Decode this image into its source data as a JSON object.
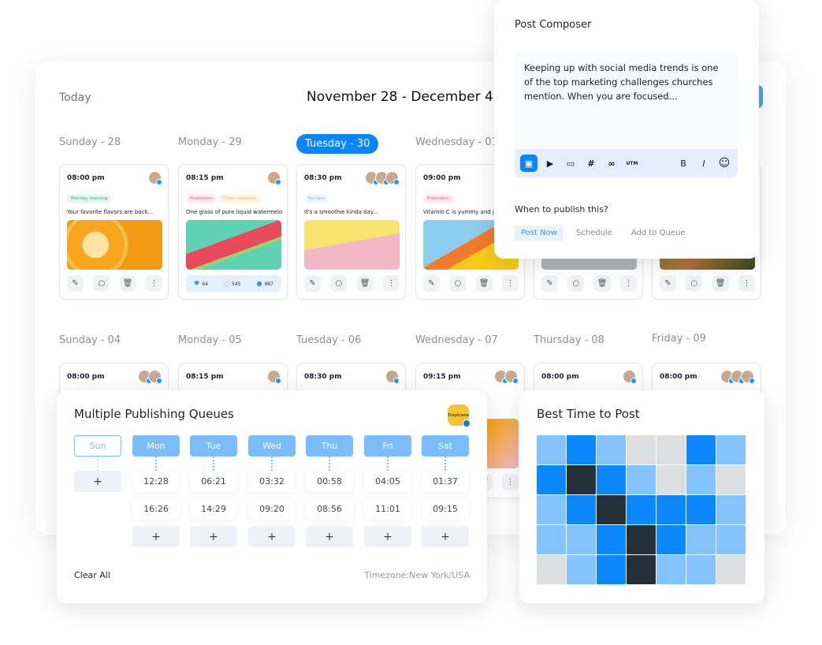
{
  "calendar": {
    "today_label": "Today",
    "date_range": "November 28 - December 4,2",
    "week1_days": [
      {
        "label": "Sunday - 28"
      },
      {
        "label": "Monday - 29"
      },
      {
        "label": "Tuesday - 30",
        "active": true
      },
      {
        "label": "Wednesday - 01"
      }
    ],
    "week2_days": [
      {
        "label": "Sunday - 04"
      },
      {
        "label": "Monday - 05"
      },
      {
        "label": "Tuesday - 06"
      },
      {
        "label": "Wednesday - 07"
      },
      {
        "label": "Thursday - 08"
      },
      {
        "label": "Friday - 09"
      }
    ],
    "week1_posts": [
      {
        "time": "08:00 pm",
        "tags": [
          {
            "text": "Monday morning",
            "bg": "#e6f7ef",
            "fg": "#2fb37a"
          }
        ],
        "text": "Your favorite flavors are back...",
        "image": "oranges",
        "avatars": 1
      },
      {
        "time": "08:15 pm",
        "tags": [
          {
            "text": "Promotion",
            "bg": "#fdecef",
            "fg": "#ef5b7c"
          },
          {
            "text": "Citrus madness",
            "bg": "#fff4e6",
            "fg": "#f0b45a"
          }
        ],
        "text": "One glass of pure liquid watermelon...",
        "image": "watermelon",
        "avatars": 1,
        "stats": {
          "likes": "64",
          "shares": "545",
          "comments": "987"
        }
      },
      {
        "time": "08:30 pm",
        "tags": [
          {
            "text": "Recipes",
            "bg": "#eef5fd",
            "fg": "#8db8ea"
          }
        ],
        "text": "It's a smoothie kinda day...",
        "image": "mango",
        "avatars": 3
      },
      {
        "time": "09:00 pm",
        "tags": [
          {
            "text": "Promotion",
            "bg": "#fdecef",
            "fg": "#ef5b7c"
          }
        ],
        "text": "Vitamin C is yummy and juicy",
        "image": "grapefruit",
        "avatars": 0
      },
      {
        "time": "",
        "tags": [],
        "text": "",
        "image": "pineapple",
        "avatars": 0
      },
      {
        "time": "",
        "tags": [],
        "text": "",
        "image": "greens",
        "avatars": 0
      }
    ],
    "week2_posts": [
      {
        "time": "08:00 pm",
        "avatars": 2
      },
      {
        "time": "08:15 pm",
        "avatars": 1
      },
      {
        "time": "08:30 pm",
        "avatars": 1
      },
      {
        "time": "09:15 pm",
        "avatars": 2
      },
      {
        "time": "08:00 pm",
        "avatars": 1
      },
      {
        "time": "08:00 pm",
        "avatars": 3
      }
    ]
  },
  "composer": {
    "title": "Post Composer",
    "text": "Keeping up with social media trends is one of the top marketing challenges churches mention. When you are focused...",
    "toolbar": [
      "image-add-icon",
      "video-icon",
      "folder-icon",
      "hashtag-icon",
      "link-icon",
      "UTM",
      "B",
      "I",
      "emoji-icon"
    ],
    "when_label": "When to publish this?",
    "options": [
      {
        "label": "Post Now",
        "selected": true
      },
      {
        "label": "Schedule"
      },
      {
        "label": "Add to Queue"
      }
    ]
  },
  "queues": {
    "title": "Multiple Publishing Queues",
    "logo_text": "Tropicana",
    "days": [
      {
        "label": "Sun",
        "enabled": false,
        "times": []
      },
      {
        "label": "Mon",
        "enabled": true,
        "times": [
          "12:28",
          "16:26"
        ]
      },
      {
        "label": "Tue",
        "enabled": true,
        "times": [
          "06:21",
          "14:29"
        ]
      },
      {
        "label": "Wed",
        "enabled": true,
        "times": [
          "03:32",
          "09:20"
        ]
      },
      {
        "label": "Thu",
        "enabled": true,
        "times": [
          "00:58",
          "08:56"
        ]
      },
      {
        "label": "Fri",
        "enabled": true,
        "times": [
          "04:05",
          "11:01"
        ]
      },
      {
        "label": "Sat",
        "enabled": true,
        "times": [
          "01:37",
          "09:15"
        ]
      }
    ],
    "add_label": "+",
    "clear_label": "Clear All",
    "timezone": "Timezone:New York/USA"
  },
  "best_time": {
    "title": "Best Time to Post",
    "levels": [
      [
        1,
        2,
        1,
        0,
        0,
        2,
        1
      ],
      [
        2,
        3,
        2,
        1,
        0,
        1,
        0
      ],
      [
        1,
        2,
        3,
        2,
        2,
        2,
        1
      ],
      [
        1,
        1,
        2,
        3,
        2,
        1,
        1
      ],
      [
        0,
        1,
        2,
        3,
        1,
        1,
        0
      ]
    ],
    "colors": [
      "#dddee0",
      "#84c3fd",
      "#0a88fc",
      "#263038"
    ]
  },
  "colors": {
    "accent": "#0a84ff",
    "social_twitter": "#1d9bf0",
    "social_pinterest": "#e60023"
  }
}
